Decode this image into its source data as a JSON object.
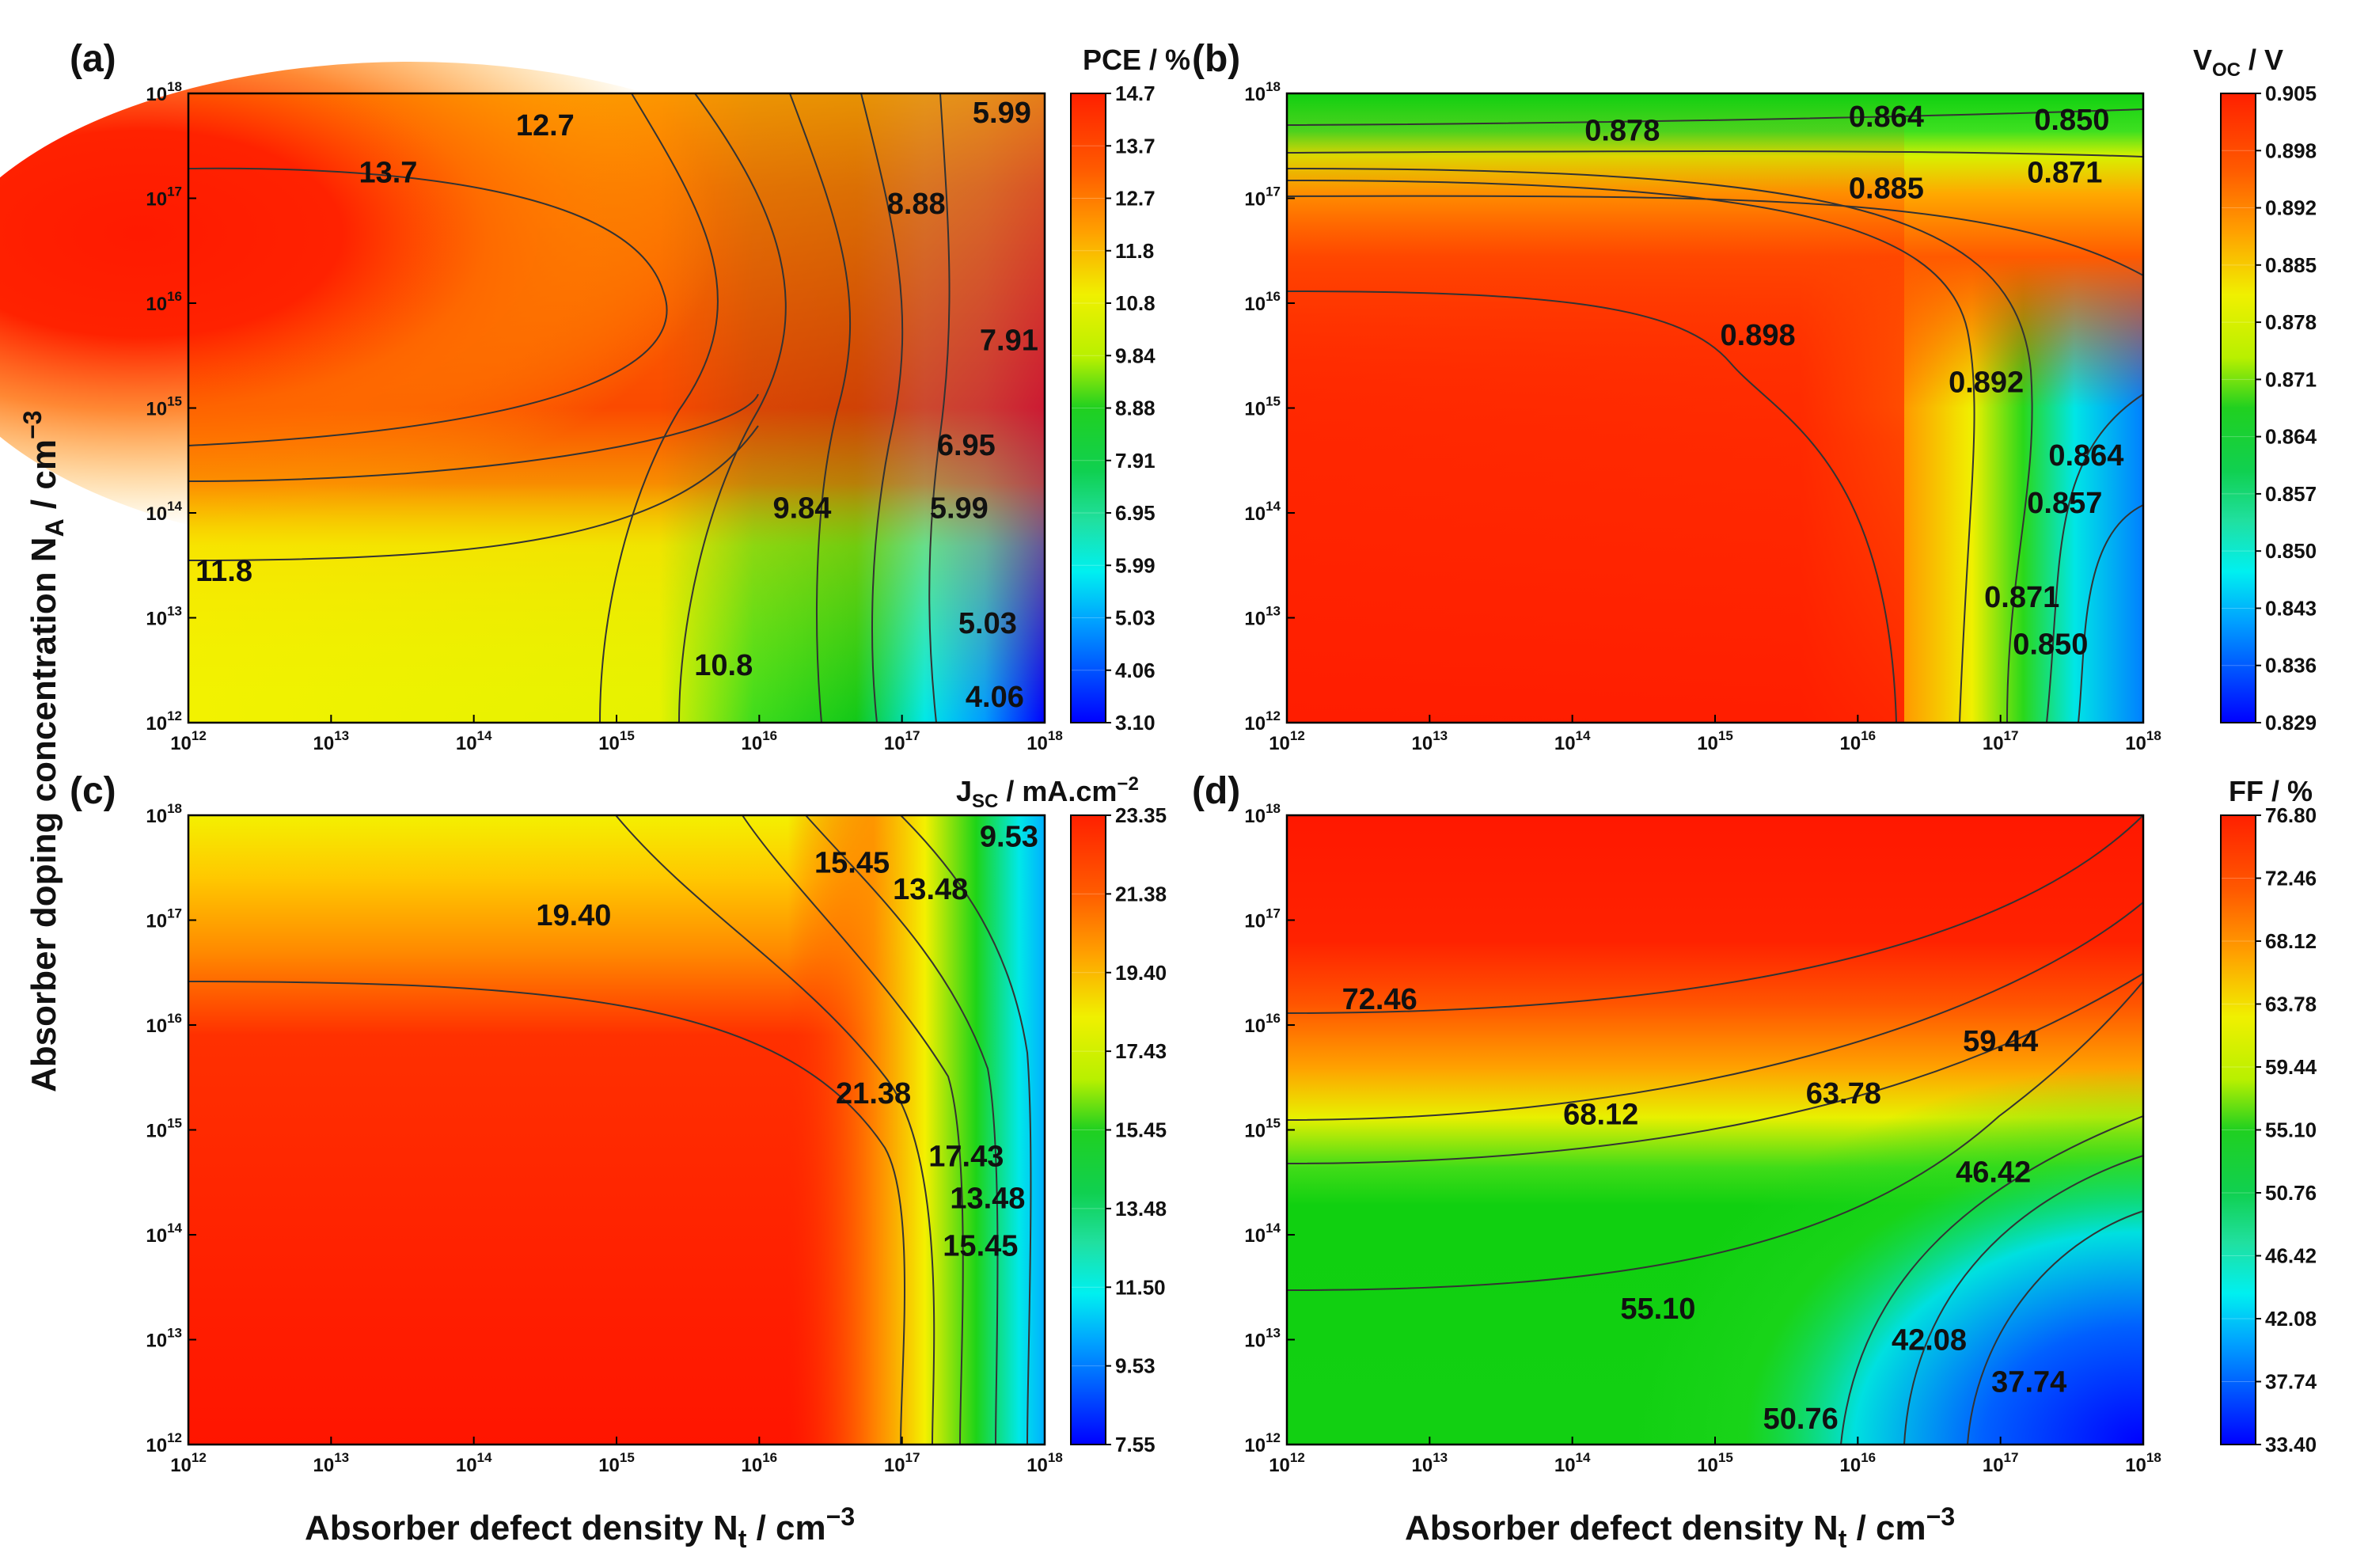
{
  "figure": {
    "x_axis_title_prefix": "Absorber defect density N",
    "x_axis_title_sub": "t",
    "x_axis_title_unit": " / cm",
    "x_axis_title_exp": "−3",
    "y_axis_title_prefix": "Absorber doping concentration N",
    "y_axis_title_sub": "A",
    "y_axis_title_unit": " / cm",
    "y_axis_title_exp": "−3",
    "tick_base": "10",
    "tick_exponents": [
      "12",
      "13",
      "14",
      "15",
      "16",
      "17",
      "18"
    ]
  },
  "chart_data": [
    {
      "id": "a",
      "type": "heatmap",
      "panel_label": "(a)",
      "title": "PCE / %",
      "title_parts": [
        "PCE / %"
      ],
      "xlabel": "Absorber defect density Nt / cm−3",
      "ylabel": "Absorber doping concentration NA / cm−3",
      "x_log_range": [
        12,
        18
      ],
      "y_log_range": [
        12,
        18
      ],
      "colorbar_ticks": [
        "14.7",
        "13.7",
        "12.7",
        "11.8",
        "10.8",
        "9.84",
        "8.88",
        "7.91",
        "6.95",
        "5.99",
        "5.03",
        "4.06",
        "3.10"
      ],
      "contour_labels": [
        {
          "text": "12.7",
          "log_nt": 14.5,
          "log_na": 17.7
        },
        {
          "text": "13.7",
          "log_nt": 13.4,
          "log_na": 17.25
        },
        {
          "text": "5.99",
          "log_nt": 17.7,
          "log_na": 17.82
        },
        {
          "text": "8.88",
          "log_nt": 17.1,
          "log_na": 16.95
        },
        {
          "text": "7.91",
          "log_nt": 17.75,
          "log_na": 15.65
        },
        {
          "text": "6.95",
          "log_nt": 17.45,
          "log_na": 14.65
        },
        {
          "text": "9.84",
          "log_nt": 16.3,
          "log_na": 14.05
        },
        {
          "text": "5.99",
          "log_nt": 17.4,
          "log_na": 14.05
        },
        {
          "text": "11.8",
          "log_nt": 12.25,
          "log_na": 13.45
        },
        {
          "text": "5.03",
          "log_nt": 17.6,
          "log_na": 12.95
        },
        {
          "text": "10.8",
          "log_nt": 15.75,
          "log_na": 12.55
        },
        {
          "text": "4.06",
          "log_nt": 17.65,
          "log_na": 12.25
        }
      ]
    },
    {
      "id": "b",
      "type": "heatmap",
      "panel_label": "(b)",
      "title": "VOC / V",
      "title_parts": [
        "V",
        "OC",
        " / V"
      ],
      "xlabel": "Absorber defect density Nt / cm−3",
      "ylabel": "Absorber doping concentration NA / cm−3",
      "x_log_range": [
        12,
        18
      ],
      "y_log_range": [
        12,
        18
      ],
      "colorbar_ticks": [
        "0.905",
        "0.898",
        "0.892",
        "0.885",
        "0.878",
        "0.871",
        "0.864",
        "0.857",
        "0.850",
        "0.843",
        "0.836",
        "0.829"
      ],
      "contour_labels": [
        {
          "text": "0.878",
          "log_nt": 14.35,
          "log_na": 17.65
        },
        {
          "text": "0.864",
          "log_nt": 16.2,
          "log_na": 17.78
        },
        {
          "text": "0.850",
          "log_nt": 17.5,
          "log_na": 17.75
        },
        {
          "text": "0.885",
          "log_nt": 16.2,
          "log_na": 17.1
        },
        {
          "text": "0.871",
          "log_nt": 17.45,
          "log_na": 17.25
        },
        {
          "text": "0.898",
          "log_nt": 15.3,
          "log_na": 15.7
        },
        {
          "text": "0.892",
          "log_nt": 16.9,
          "log_na": 15.25
        },
        {
          "text": "0.864",
          "log_nt": 17.6,
          "log_na": 14.55
        },
        {
          "text": "0.857",
          "log_nt": 17.45,
          "log_na": 14.1
        },
        {
          "text": "0.871",
          "log_nt": 17.15,
          "log_na": 13.2
        },
        {
          "text": "0.850",
          "log_nt": 17.35,
          "log_na": 12.75
        }
      ]
    },
    {
      "id": "c",
      "type": "heatmap",
      "panel_label": "(c)",
      "title": "JSC / mA.cm−2",
      "title_parts": [
        "J",
        "SC",
        " / mA.cm",
        "−2"
      ],
      "xlabel": "Absorber defect density Nt / cm−3",
      "ylabel": "Absorber doping concentration NA / cm−3",
      "x_log_range": [
        12,
        18
      ],
      "y_log_range": [
        12,
        18
      ],
      "colorbar_ticks": [
        "23.35",
        "21.38",
        "19.40",
        "17.43",
        "15.45",
        "13.48",
        "11.50",
        "9.53",
        "7.55"
      ],
      "contour_labels": [
        {
          "text": "9.53",
          "log_nt": 17.75,
          "log_na": 17.8
        },
        {
          "text": "15.45",
          "log_nt": 16.65,
          "log_na": 17.55
        },
        {
          "text": "13.48",
          "log_nt": 17.2,
          "log_na": 17.3
        },
        {
          "text": "19.40",
          "log_nt": 14.7,
          "log_na": 17.05
        },
        {
          "text": "21.38",
          "log_nt": 16.8,
          "log_na": 15.35
        },
        {
          "text": "17.43",
          "log_nt": 17.45,
          "log_na": 14.75
        },
        {
          "text": "13.48",
          "log_nt": 17.6,
          "log_na": 14.35
        },
        {
          "text": "15.45",
          "log_nt": 17.55,
          "log_na": 13.9
        }
      ]
    },
    {
      "id": "d",
      "type": "heatmap",
      "panel_label": "(d)",
      "title": "FF / %",
      "title_parts": [
        "FF / %"
      ],
      "xlabel": "Absorber defect density Nt / cm−3",
      "ylabel": "Absorber doping concentration NA / cm−3",
      "x_log_range": [
        12,
        18
      ],
      "y_log_range": [
        12,
        18
      ],
      "colorbar_ticks": [
        "76.80",
        "72.46",
        "68.12",
        "63.78",
        "59.44",
        "55.10",
        "50.76",
        "46.42",
        "42.08",
        "37.74",
        "33.40"
      ],
      "contour_labels": [
        {
          "text": "72.46",
          "log_nt": 12.65,
          "log_na": 16.25
        },
        {
          "text": "59.44",
          "log_nt": 17.0,
          "log_na": 15.85
        },
        {
          "text": "68.12",
          "log_nt": 14.2,
          "log_na": 15.15
        },
        {
          "text": "63.78",
          "log_nt": 15.9,
          "log_na": 15.35
        },
        {
          "text": "46.42",
          "log_nt": 16.95,
          "log_na": 14.6
        },
        {
          "text": "55.10",
          "log_nt": 14.6,
          "log_na": 13.3
        },
        {
          "text": "42.08",
          "log_nt": 16.5,
          "log_na": 13.0
        },
        {
          "text": "37.74",
          "log_nt": 17.2,
          "log_na": 12.6
        },
        {
          "text": "50.76",
          "log_nt": 15.6,
          "log_na": 12.25
        }
      ]
    }
  ]
}
